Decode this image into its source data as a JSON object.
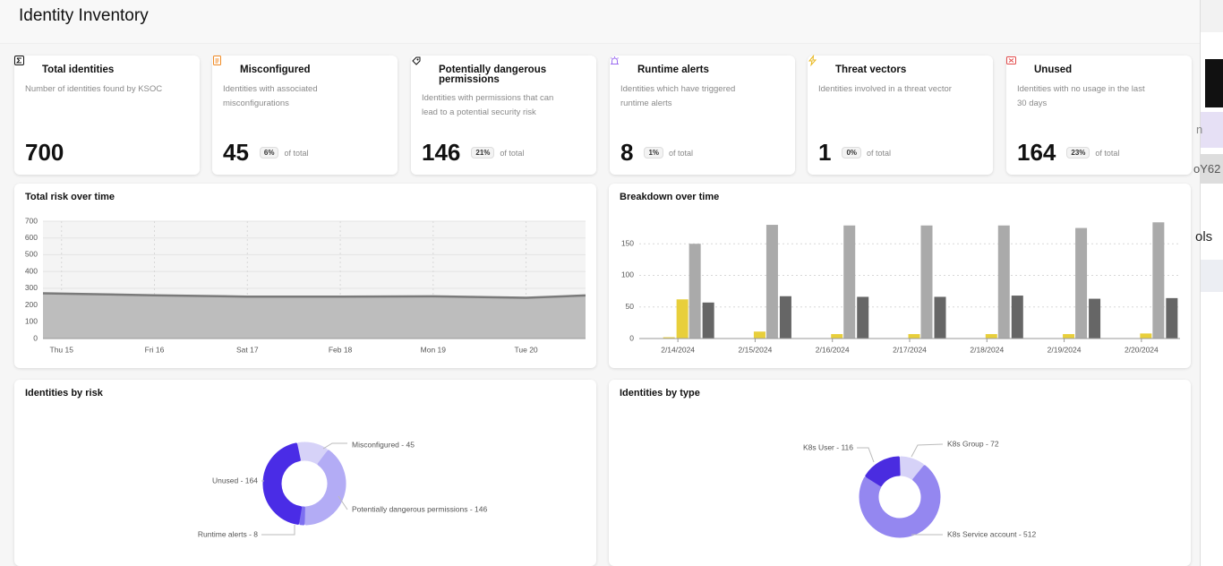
{
  "header": {
    "title": "Identity Inventory"
  },
  "cards": [
    {
      "title": "Total identities",
      "description": "Number of identities found by KSOC",
      "value": 700
    },
    {
      "title": "Misconfigured",
      "description": "Identities with associated misconfigurations",
      "value": 45,
      "percent": "6%",
      "percent_suffix": "of total"
    },
    {
      "title": "Potentially dangerous permissions",
      "description": "Identities with permissions that can lead to a potential security risk",
      "value": 146,
      "percent": "21%",
      "percent_suffix": "of total"
    },
    {
      "title": "Runtime alerts",
      "description": "Identities which have triggered runtime alerts",
      "value": 8,
      "percent": "1%",
      "percent_suffix": "of total"
    },
    {
      "title": "Threat vectors",
      "description": "Identities involved in a threat vector",
      "value": 1,
      "percent": "0%",
      "percent_suffix": "of total"
    },
    {
      "title": "Unused",
      "description": "Identities with no usage in the last 30 days",
      "value": 164,
      "percent": "23%",
      "percent_suffix": "of total"
    }
  ],
  "chart_data": [
    {
      "type": "area",
      "title": "Total risk over time",
      "x": [
        14.8,
        16,
        17,
        18,
        19,
        20,
        20.64
      ],
      "series": [
        {
          "color": "#bdbdbd",
          "line_color": "#7a7a7a",
          "values": [
            270,
            258,
            250,
            250,
            252,
            243,
            257
          ]
        }
      ],
      "xlim": [
        14.8,
        20.64
      ],
      "xticks": [
        {
          "value": 15,
          "label": "Thu 15"
        },
        {
          "value": 16,
          "label": "Fri 16"
        },
        {
          "value": 17,
          "label": "Sat 17"
        },
        {
          "value": 18,
          "label": "Feb 18"
        },
        {
          "value": 19,
          "label": "Mon 19"
        },
        {
          "value": 20,
          "label": "Tue 20"
        }
      ],
      "ylim": [
        0,
        700
      ],
      "yticks": [
        0,
        100,
        200,
        300,
        400,
        500,
        600,
        700
      ],
      "grid": true
    },
    {
      "type": "bar",
      "title": "Breakdown over time",
      "categories": [
        "2/14/2024",
        "2/15/2024",
        "2/16/2024",
        "2/17/2024",
        "2/18/2024",
        "2/19/2024",
        "2/20/2024"
      ],
      "series": [
        {
          "color": "#e8cf3b",
          "values": [
            2,
            0,
            0,
            0,
            0,
            0,
            0
          ]
        },
        {
          "color": "#e8cf3b",
          "values": [
            62,
            11,
            7,
            7,
            7,
            7,
            8
          ]
        },
        {
          "color": "#aaaaaa",
          "values": [
            150,
            180,
            179,
            179,
            179,
            175,
            184
          ]
        },
        {
          "color": "#666666",
          "values": [
            57,
            67,
            66,
            66,
            68,
            63,
            64
          ]
        }
      ],
      "ylim": [
        0,
        190
      ],
      "yticks": [
        0,
        50,
        100,
        150
      ],
      "grid": true
    },
    {
      "type": "pie",
      "donut": true,
      "title": "Identities by risk",
      "values": [
        45,
        146,
        8,
        164
      ],
      "value_labels": [
        "Misconfigured - 45",
        "Potentially dangerous permissions - 146",
        "Runtime alerts - 8",
        "Unused - 164"
      ],
      "colors": [
        "#d6d2f8",
        "#b3acf5",
        "#7d6ff0",
        "#4a2ce6"
      ]
    },
    {
      "type": "pie",
      "donut": true,
      "title": "Identities by type",
      "values": [
        72,
        512,
        116
      ],
      "value_labels": [
        "K8s Group - 72",
        "K8s Service account - 512",
        "K8s User - 116"
      ],
      "colors": [
        "#d6d2f8",
        "#9487f0",
        "#4a2ce0"
      ]
    }
  ],
  "side": {
    "texts": [
      "n",
      "oY62",
      "ols"
    ]
  }
}
